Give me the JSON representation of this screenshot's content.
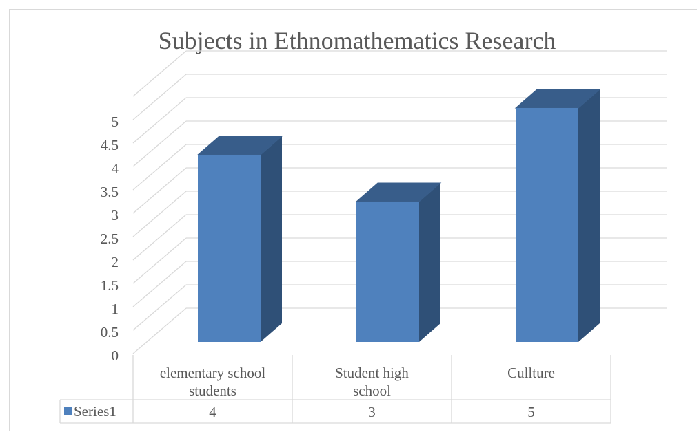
{
  "chart_data": {
    "type": "bar",
    "title": "Subjects in Ethnomathematics Research",
    "categories": [
      [
        "elementary school",
        "students"
      ],
      [
        "Student high",
        "school"
      ],
      [
        "Cullture"
      ]
    ],
    "series": [
      {
        "name": "Series1",
        "values": [
          4,
          3,
          5
        ],
        "color": "#4f81bd"
      }
    ],
    "ylim": [
      0,
      5
    ],
    "yticks": [
      "0",
      "0.5",
      "1",
      "1.5",
      "2",
      "2.5",
      "3",
      "3.5",
      "4",
      "4.5",
      "5"
    ],
    "grid": true,
    "legend": "data-table",
    "style": "3d-column"
  }
}
